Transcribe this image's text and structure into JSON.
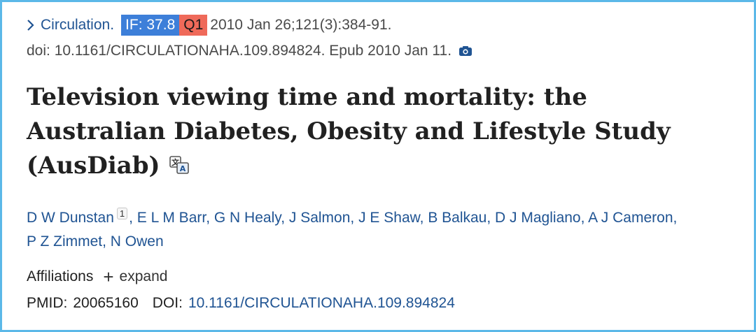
{
  "citation": {
    "journal": "Circulation.",
    "if_badge": "IF: 37.8",
    "quartile_badge": "Q1",
    "details": "2010 Jan 26;121(3):384-91.",
    "doi_epub": "doi: 10.1161/CIRCULATIONAHA.109.894824. Epub 2010 Jan 11."
  },
  "title": {
    "line1": "Television viewing time and mortality: the",
    "line2": "Australian Diabetes, Obesity and Lifestyle Study",
    "line3": "(AusDiab)"
  },
  "authors": {
    "first": "D W Dunstan",
    "first_sup": "1",
    "list": [
      "E L M Barr",
      "G N Healy",
      "J Salmon",
      "J E Shaw",
      "B Balkau",
      "D J Magliano",
      "A J Cameron",
      "P Z Zimmet",
      "N Owen"
    ]
  },
  "affiliations": {
    "label": "Affiliations",
    "expand_label": "expand"
  },
  "ids": {
    "pmid_label": "PMID:",
    "pmid_value": "20065160",
    "doi_label": "DOI:",
    "doi_value": "10.1161/CIRCULATIONAHA.109.894824"
  },
  "colors": {
    "link": "#205493",
    "if_badge_bg": "#3d7fd9",
    "quartile_badge_bg": "#ef6a5a",
    "frame_border": "#5bb8e8"
  },
  "icons": [
    "chevron-right-icon",
    "camera-icon",
    "translate-icon",
    "plus-icon"
  ]
}
